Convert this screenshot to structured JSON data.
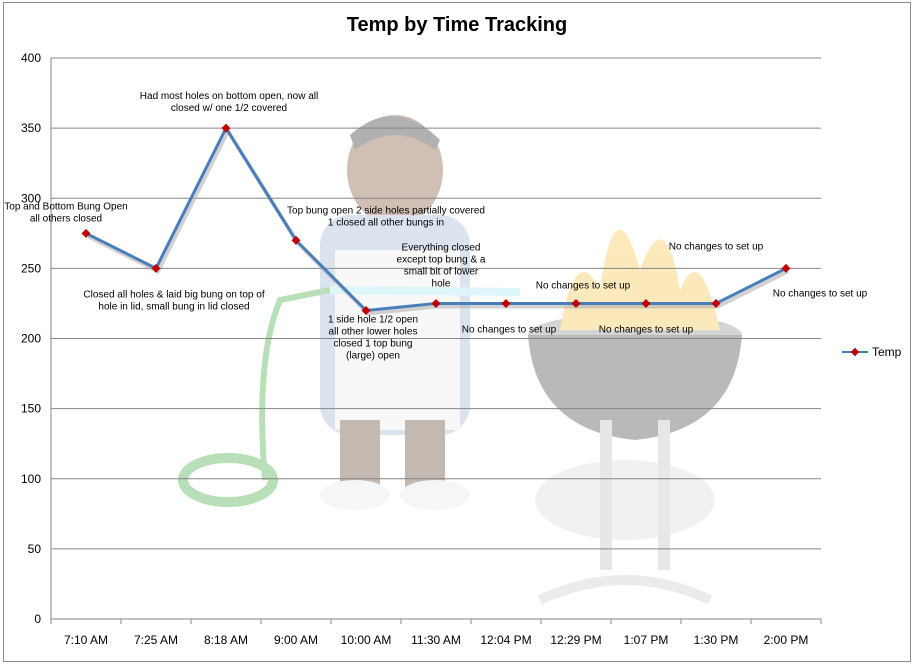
{
  "chart_data": {
    "type": "line",
    "title": "Temp by Time Tracking",
    "categories": [
      "7:10 AM",
      "7:25 AM",
      "8:18 AM",
      "9:00 AM",
      "10:00 AM",
      "11:30 AM",
      "12:04 PM",
      "12:29 PM",
      "1:07 PM",
      "1:30 PM",
      "2:00 PM"
    ],
    "series": [
      {
        "name": "Temp",
        "values": [
          275,
          250,
          350,
          270,
          220,
          225,
          225,
          225,
          225,
          225,
          250
        ]
      }
    ],
    "ylim": [
      0,
      400
    ],
    "yticks": [
      0,
      50,
      100,
      150,
      200,
      250,
      300,
      350,
      400
    ],
    "grid": true,
    "legend_position": "right",
    "annotations": [
      {
        "index": 0,
        "lines": [
          "Top and Bottom Bung Open",
          "all others closed"
        ]
      },
      {
        "index": 1,
        "lines": [
          "Closed all holes & laid big bung on top of",
          "hole in lid, small bung in lid closed"
        ]
      },
      {
        "index": 2,
        "lines": [
          "Had most holes on bottom open, now all",
          "closed w/ one 1/2 covered"
        ]
      },
      {
        "index": 3,
        "lines": [
          "Top bung open 2 side holes partially covered",
          "1 closed all other bungs in"
        ]
      },
      {
        "index": 4,
        "lines": [
          "1 side hole 1/2 open",
          "all other lower holes",
          "closed 1 top bung",
          "(large) open"
        ]
      },
      {
        "index": 5,
        "lines": [
          "Everything closed",
          "except top bung & a",
          "small bit of lower",
          "hole"
        ]
      },
      {
        "index": 6,
        "lines": [
          "No changes to set up"
        ]
      },
      {
        "index": 7,
        "lines": [
          "No changes to set up"
        ]
      },
      {
        "index": 8,
        "lines": [
          "No changes to set up"
        ]
      },
      {
        "index": 9,
        "lines": [
          "No changes to set up"
        ]
      },
      {
        "index": 10,
        "lines": [
          "No changes to set up"
        ]
      }
    ],
    "colors": {
      "line": "#4a7ebb",
      "marker": "#c00000",
      "grid": "#868686"
    }
  }
}
